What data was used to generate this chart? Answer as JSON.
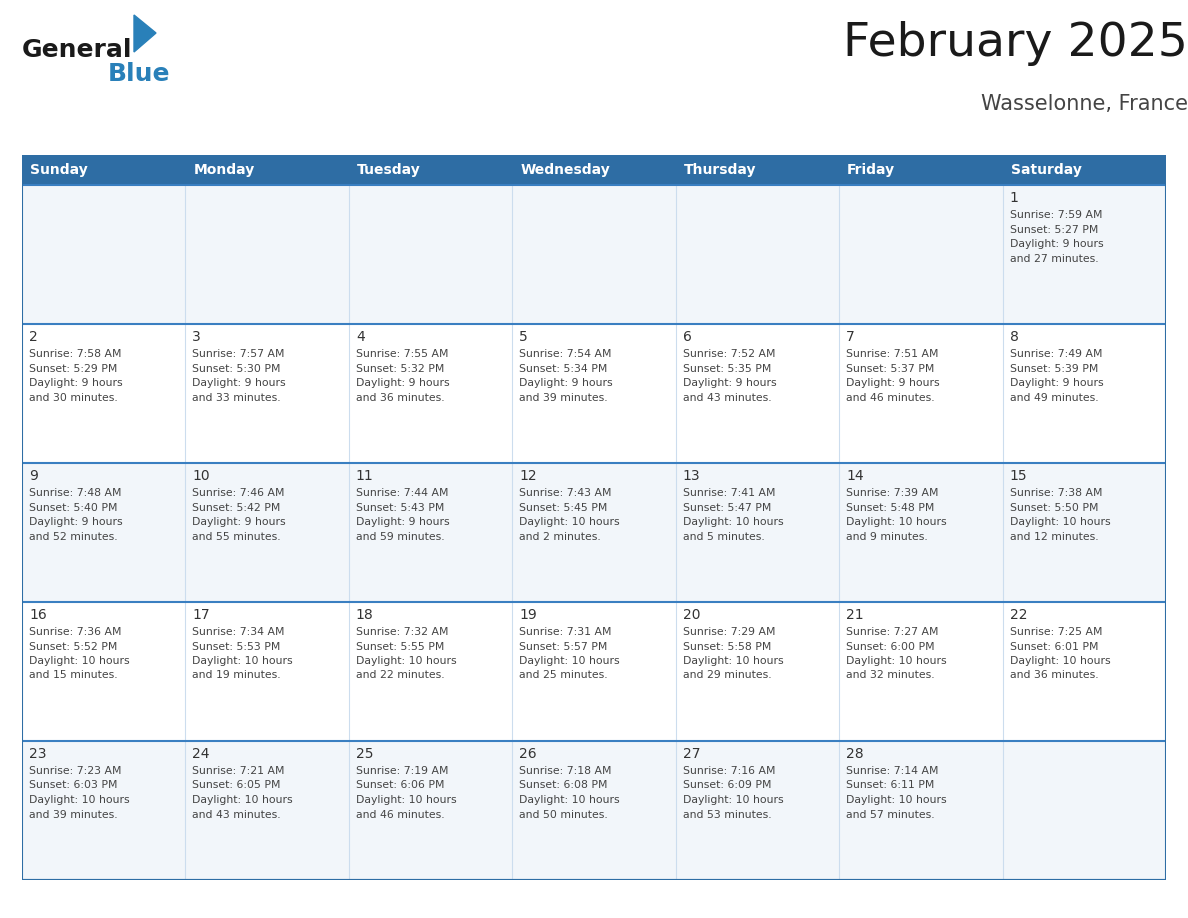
{
  "title": "February 2025",
  "subtitle": "Wasselonne, France",
  "days_of_week": [
    "Sunday",
    "Monday",
    "Tuesday",
    "Wednesday",
    "Thursday",
    "Friday",
    "Saturday"
  ],
  "header_bg": "#2E6DA4",
  "header_text_color": "#FFFFFF",
  "border_color": "#2E6DA4",
  "title_color": "#1a1a1a",
  "subtitle_color": "#444444",
  "day_number_color": "#333333",
  "cell_text_color": "#444444",
  "logo_general_color": "#1a1a1a",
  "logo_blue_color": "#2980B9",
  "cell_bg_white": "#FFFFFF",
  "cell_bg_gray": "#F2F6FA",
  "separator_color": "#3A7FC1",
  "vline_color": "#CCDDEE",
  "calendar_data": {
    "1": {
      "sunrise": "7:59 AM",
      "sunset": "5:27 PM",
      "daylight": "9 hours and 27 minutes"
    },
    "2": {
      "sunrise": "7:58 AM",
      "sunset": "5:29 PM",
      "daylight": "9 hours and 30 minutes"
    },
    "3": {
      "sunrise": "7:57 AM",
      "sunset": "5:30 PM",
      "daylight": "9 hours and 33 minutes"
    },
    "4": {
      "sunrise": "7:55 AM",
      "sunset": "5:32 PM",
      "daylight": "9 hours and 36 minutes"
    },
    "5": {
      "sunrise": "7:54 AM",
      "sunset": "5:34 PM",
      "daylight": "9 hours and 39 minutes"
    },
    "6": {
      "sunrise": "7:52 AM",
      "sunset": "5:35 PM",
      "daylight": "9 hours and 43 minutes"
    },
    "7": {
      "sunrise": "7:51 AM",
      "sunset": "5:37 PM",
      "daylight": "9 hours and 46 minutes"
    },
    "8": {
      "sunrise": "7:49 AM",
      "sunset": "5:39 PM",
      "daylight": "9 hours and 49 minutes"
    },
    "9": {
      "sunrise": "7:48 AM",
      "sunset": "5:40 PM",
      "daylight": "9 hours and 52 minutes"
    },
    "10": {
      "sunrise": "7:46 AM",
      "sunset": "5:42 PM",
      "daylight": "9 hours and 55 minutes"
    },
    "11": {
      "sunrise": "7:44 AM",
      "sunset": "5:43 PM",
      "daylight": "9 hours and 59 minutes"
    },
    "12": {
      "sunrise": "7:43 AM",
      "sunset": "5:45 PM",
      "daylight": "10 hours and 2 minutes"
    },
    "13": {
      "sunrise": "7:41 AM",
      "sunset": "5:47 PM",
      "daylight": "10 hours and 5 minutes"
    },
    "14": {
      "sunrise": "7:39 AM",
      "sunset": "5:48 PM",
      "daylight": "10 hours and 9 minutes"
    },
    "15": {
      "sunrise": "7:38 AM",
      "sunset": "5:50 PM",
      "daylight": "10 hours and 12 minutes"
    },
    "16": {
      "sunrise": "7:36 AM",
      "sunset": "5:52 PM",
      "daylight": "10 hours and 15 minutes"
    },
    "17": {
      "sunrise": "7:34 AM",
      "sunset": "5:53 PM",
      "daylight": "10 hours and 19 minutes"
    },
    "18": {
      "sunrise": "7:32 AM",
      "sunset": "5:55 PM",
      "daylight": "10 hours and 22 minutes"
    },
    "19": {
      "sunrise": "7:31 AM",
      "sunset": "5:57 PM",
      "daylight": "10 hours and 25 minutes"
    },
    "20": {
      "sunrise": "7:29 AM",
      "sunset": "5:58 PM",
      "daylight": "10 hours and 29 minutes"
    },
    "21": {
      "sunrise": "7:27 AM",
      "sunset": "6:00 PM",
      "daylight": "10 hours and 32 minutes"
    },
    "22": {
      "sunrise": "7:25 AM",
      "sunset": "6:01 PM",
      "daylight": "10 hours and 36 minutes"
    },
    "23": {
      "sunrise": "7:23 AM",
      "sunset": "6:03 PM",
      "daylight": "10 hours and 39 minutes"
    },
    "24": {
      "sunrise": "7:21 AM",
      "sunset": "6:05 PM",
      "daylight": "10 hours and 43 minutes"
    },
    "25": {
      "sunrise": "7:19 AM",
      "sunset": "6:06 PM",
      "daylight": "10 hours and 46 minutes"
    },
    "26": {
      "sunrise": "7:18 AM",
      "sunset": "6:08 PM",
      "daylight": "10 hours and 50 minutes"
    },
    "27": {
      "sunrise": "7:16 AM",
      "sunset": "6:09 PM",
      "daylight": "10 hours and 53 minutes"
    },
    "28": {
      "sunrise": "7:14 AM",
      "sunset": "6:11 PM",
      "daylight": "10 hours and 57 minutes"
    }
  }
}
